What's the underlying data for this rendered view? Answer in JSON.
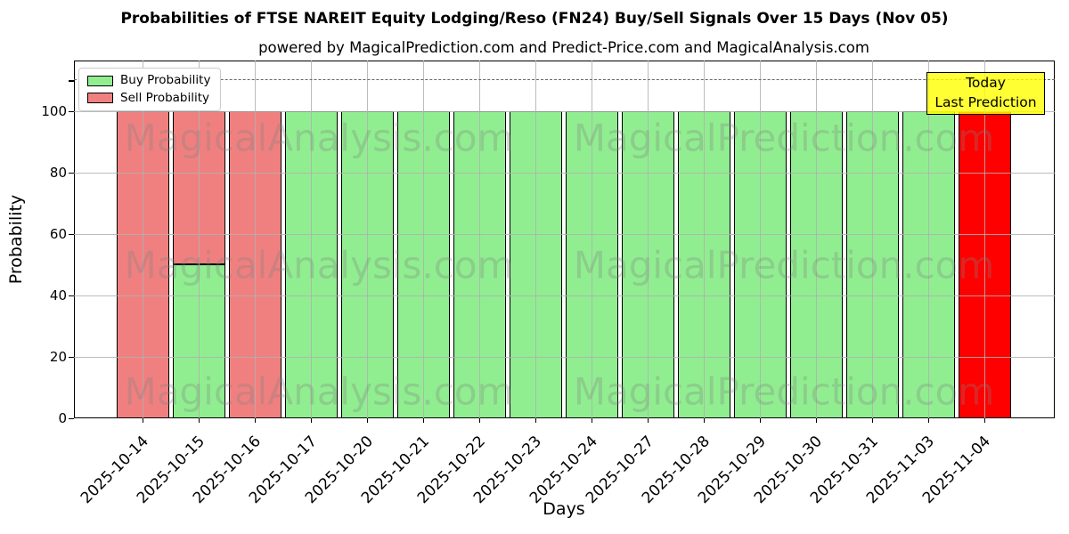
{
  "chart_data": {
    "type": "bar",
    "stacked": true,
    "title": "Probabilities of FTSE NAREIT Equity Lodging/Reso (FN24) Buy/Sell Signals Over 15 Days (Nov 05)",
    "subtitle": "powered by MagicalPrediction.com and Predict-Price.com and MagicalAnalysis.com",
    "xlabel": "Days",
    "ylabel": "Probability",
    "ylim": [
      0,
      116.5
    ],
    "yticks": [
      0,
      20,
      40,
      60,
      80,
      100
    ],
    "unlabeled_ytick": 110,
    "grid": true,
    "grid_above_bars": true,
    "legend_position": "upper left",
    "categories": [
      "2025-10-14",
      "2025-10-15",
      "2025-10-16",
      "2025-10-17",
      "2025-10-20",
      "2025-10-21",
      "2025-10-22",
      "2025-10-23",
      "2025-10-24",
      "2025-10-27",
      "2025-10-28",
      "2025-10-29",
      "2025-10-30",
      "2025-10-31",
      "2025-11-03",
      "2025-11-04"
    ],
    "series": [
      {
        "name": "Buy Probability",
        "color": "#90EE90",
        "in_legend": true,
        "values": [
          0,
          50,
          0,
          100,
          100,
          100,
          100,
          100,
          100,
          100,
          100,
          100,
          100,
          100,
          100,
          0
        ]
      },
      {
        "name": "Sell Probability",
        "color": "#F08080",
        "in_legend": true,
        "values": [
          100,
          50,
          100,
          0,
          0,
          0,
          0,
          0,
          0,
          0,
          0,
          0,
          0,
          0,
          0,
          0
        ]
      },
      {
        "name": "Today Last Prediction",
        "color": "#FF0000",
        "in_legend": false,
        "values": [
          0,
          0,
          0,
          0,
          0,
          0,
          0,
          0,
          0,
          0,
          0,
          0,
          0,
          0,
          0,
          100
        ]
      }
    ],
    "reference_line": {
      "y": 110,
      "style": "dashed",
      "color": "#666666"
    }
  },
  "annotation_box": {
    "line1": "Today",
    "line2": "Last Prediction",
    "bg_color": "#FFFF00",
    "border_color": "#000000"
  },
  "watermark": {
    "left_text": "MagicalAnalysis.com",
    "right_text": "MagicalPrediction.com",
    "color": "#808080",
    "opacity": 0.3,
    "rows": 3
  },
  "colors": {
    "background": "#FFFFFF",
    "grid": "#B0B0B0",
    "bar_edge": "#000000",
    "buy": "#90EE90",
    "sell": "#F08080",
    "today_bar": "#FF0000"
  }
}
